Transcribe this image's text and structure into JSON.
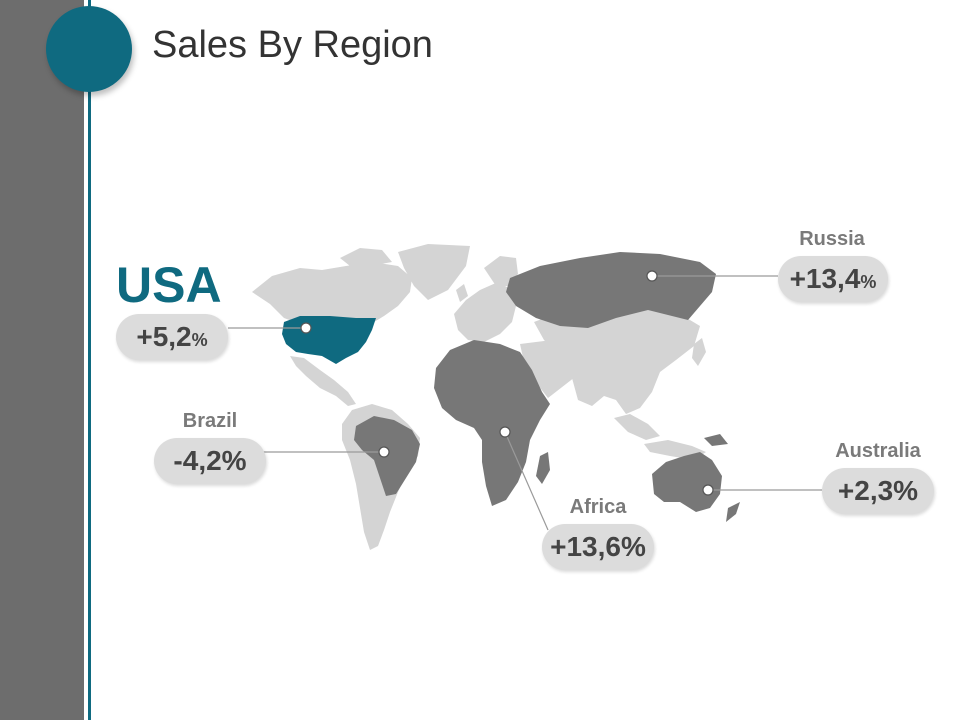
{
  "title": "Sales By Region",
  "colors": {
    "accent": "#0f6a80",
    "sidebar": "#6d6d6d",
    "highlight_land": "#777777",
    "other_land": "#d4d4d4",
    "pill_bg": "#dcdcdc"
  },
  "regions": [
    {
      "id": "usa",
      "name": "USA",
      "value": "+5,2",
      "unit": "%"
    },
    {
      "id": "russia",
      "name": "Russia",
      "value": "+13,4",
      "unit": "%"
    },
    {
      "id": "brazil",
      "name": "Brazil",
      "value": "-4,2%",
      "unit": ""
    },
    {
      "id": "africa",
      "name": "Africa",
      "value": "+13,6%",
      "unit": ""
    },
    {
      "id": "australia",
      "name": "Australia",
      "value": "+2,3%",
      "unit": ""
    }
  ]
}
